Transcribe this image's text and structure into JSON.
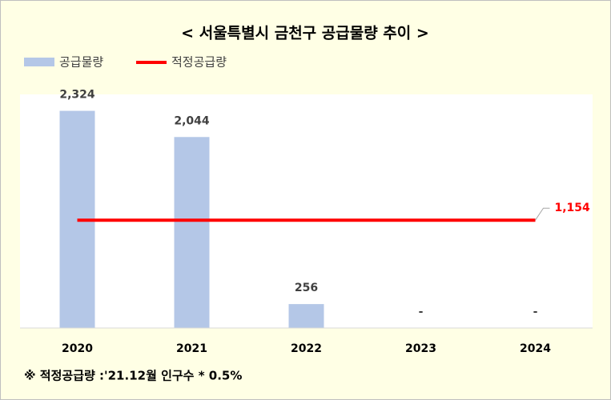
{
  "chart_data": {
    "type": "bar-line",
    "title": "< 서울특별시 금천구 공급물량 추이 >",
    "categories": [
      "2020",
      "2021",
      "2022",
      "2023",
      "2024"
    ],
    "ylim": [
      0,
      2500
    ],
    "legend": "top-left",
    "series": [
      {
        "name": "공급물량",
        "type": "bar",
        "color": "#b4c7e7",
        "values": [
          2324,
          2044,
          256,
          null,
          null
        ],
        "value_labels": [
          "2,324",
          "2,044",
          "256",
          "-",
          "-"
        ]
      },
      {
        "name": "적정공급량",
        "type": "line",
        "color": "#ff0000",
        "values": [
          1154,
          1154,
          1154,
          1154,
          1154
        ],
        "value_labels": [
          null,
          null,
          null,
          null,
          "1,154"
        ]
      }
    ],
    "note": "※ 적정공급량 :'21.12월 인구수 * 0.5%"
  }
}
